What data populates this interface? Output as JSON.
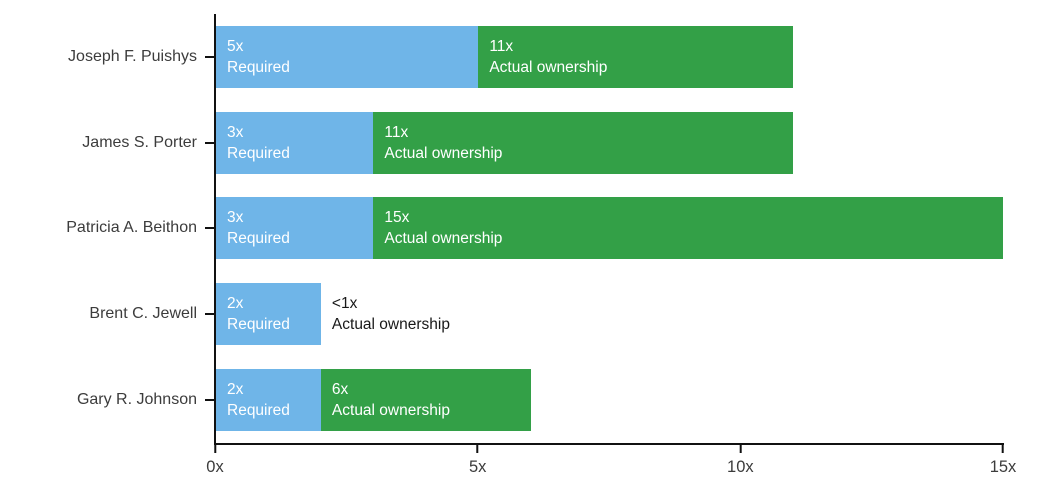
{
  "chart_data": {
    "type": "bar",
    "orientation": "horizontal",
    "title": "",
    "xlabel": "",
    "ylabel": "",
    "xlim": [
      0,
      15
    ],
    "grid": false,
    "legend_position": "none",
    "x_ticks": [
      {
        "value": 0,
        "label": "0x"
      },
      {
        "value": 5,
        "label": "5x"
      },
      {
        "value": 10,
        "label": "10x"
      },
      {
        "value": 15,
        "label": "15x"
      }
    ],
    "series_names": [
      "Required",
      "Actual ownership"
    ],
    "colors": {
      "required_bar": "#6FB5E8",
      "actual_bar": "#33A047",
      "axis": "#111111",
      "bar_text": "#FFFFFF",
      "category_text": "#3C3C3C",
      "outside_text": "#191919"
    },
    "rows": [
      {
        "category": "Joseph F. Puishys",
        "required": 5,
        "required_label": "5x",
        "actual": 11,
        "actual_label": "11x",
        "actual_has_bar": true
      },
      {
        "category": "James S. Porter",
        "required": 3,
        "required_label": "3x",
        "actual": 11,
        "actual_label": "11x",
        "actual_has_bar": true
      },
      {
        "category": "Patricia A. Beithon",
        "required": 3,
        "required_label": "3x",
        "actual": 15,
        "actual_label": "15x",
        "actual_has_bar": true
      },
      {
        "category": "Brent C. Jewell",
        "required": 2,
        "required_label": "2x",
        "actual": null,
        "actual_label": "<1x",
        "actual_has_bar": false
      },
      {
        "category": "Gary R. Johnson",
        "required": 2,
        "required_label": "2x",
        "actual": 6,
        "actual_label": "6x",
        "actual_has_bar": true
      }
    ]
  }
}
